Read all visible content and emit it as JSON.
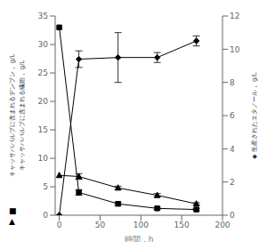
{
  "chart_data": {
    "type": "line",
    "xlabel": "時間，h",
    "ylabels": [
      "キャッサバパルプに含まれるデンプン， g/L",
      "キャッサバパルプに含まれる繊維， g/L"
    ],
    "y2label": "◆ 生産されたエタノール， g/L",
    "annotations": [
      "■",
      "▲"
    ],
    "x": [
      0,
      24,
      72,
      120,
      168
    ],
    "xlim": [
      -5,
      200
    ],
    "xticks": [
      0,
      50,
      100,
      150,
      200
    ],
    "ylim": [
      0,
      35
    ],
    "yticks": [
      0,
      5,
      10,
      15,
      20,
      25,
      30,
      35
    ],
    "y2lim": [
      0,
      12
    ],
    "y2ticks": [
      0,
      2,
      4,
      6,
      8,
      10,
      12
    ],
    "grid": false,
    "series": [
      {
        "color": "#000000",
        "marker": "square",
        "values": [
          33,
          4.0,
          2.0,
          1.2,
          1.0
        ],
        "errors": [
          0,
          0.5,
          0.3,
          0.2,
          0.2
        ]
      },
      {
        "color": "#000000",
        "marker": "triangle",
        "values": [
          7.0,
          6.8,
          4.8,
          3.5,
          2.0
        ],
        "errors": [
          0,
          0.5,
          0.3,
          0.3,
          0.2
        ]
      },
      {
        "color": "#000000",
        "marker": "diamond",
        "axis": "y2",
        "values": [
          0.0,
          9.4,
          9.5,
          9.5,
          10.5
        ],
        "errors": [
          0,
          0.5,
          1.5,
          0.3,
          0.3
        ]
      }
    ]
  }
}
